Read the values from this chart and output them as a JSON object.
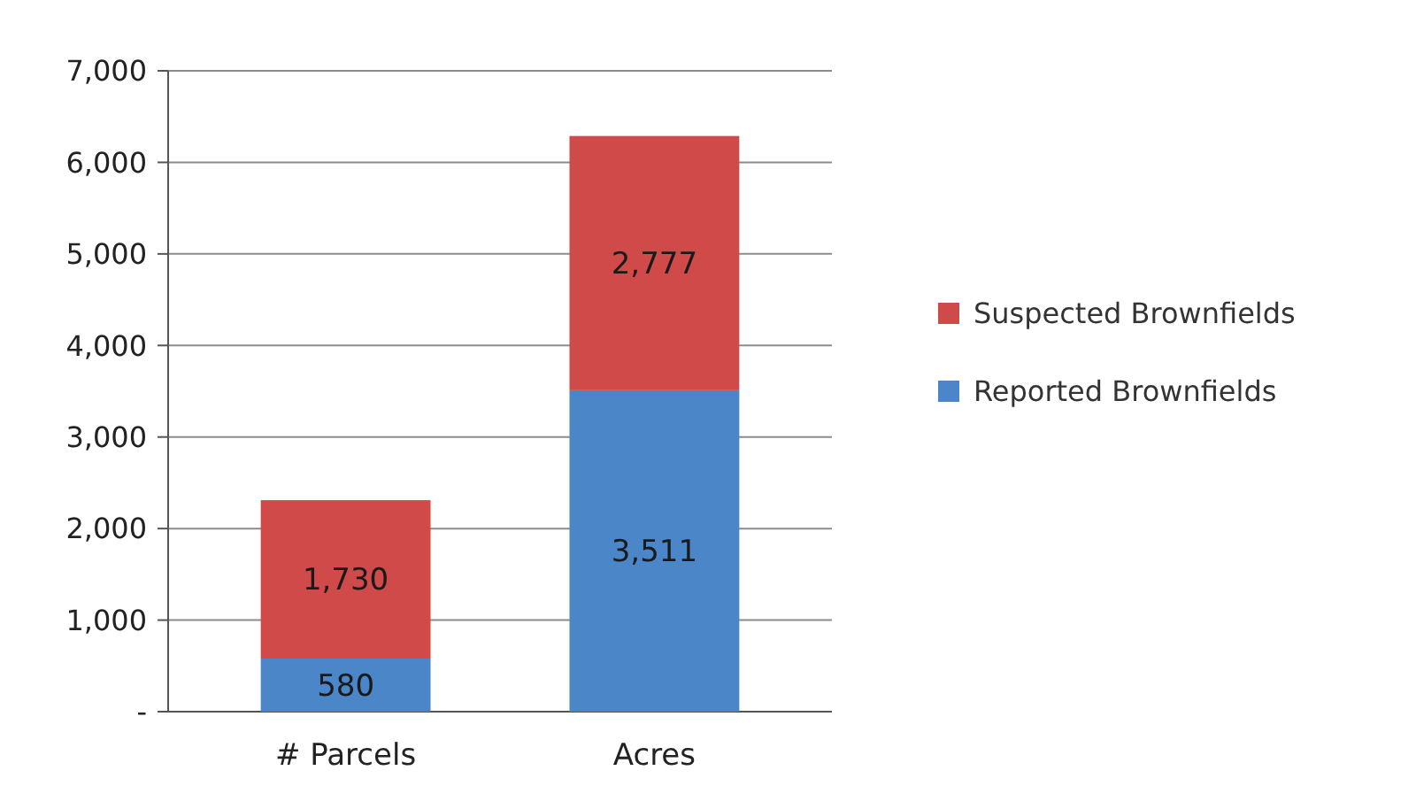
{
  "chart_data": {
    "type": "bar",
    "stacked": true,
    "categories": [
      "# Parcels",
      "Acres"
    ],
    "series": [
      {
        "name": "Reported Brownfields",
        "color": "#4a86c8",
        "values": [
          580,
          3511
        ],
        "value_labels": [
          "580",
          "3,511"
        ]
      },
      {
        "name": "Suspected Brownfields",
        "color": "#cf4a48",
        "values": [
          1730,
          2777
        ],
        "value_labels": [
          "1,730",
          "2,777"
        ]
      }
    ],
    "ylim": [
      0,
      7000
    ],
    "yticks": [
      {
        "value": 0,
        "label": "-"
      },
      {
        "value": 1000,
        "label": "1,000"
      },
      {
        "value": 2000,
        "label": "2,000"
      },
      {
        "value": 3000,
        "label": "3,000"
      },
      {
        "value": 4000,
        "label": "4,000"
      },
      {
        "value": 5000,
        "label": "5,000"
      },
      {
        "value": 6000,
        "label": "6,000"
      },
      {
        "value": 7000,
        "label": "7,000"
      }
    ],
    "grid": "y",
    "legend": "right"
  }
}
